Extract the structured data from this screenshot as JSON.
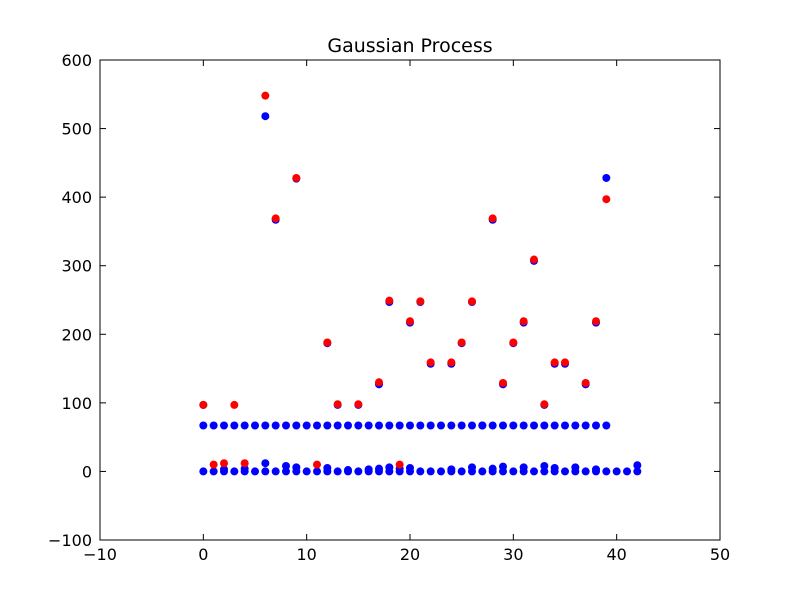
{
  "chart_data": {
    "type": "scatter",
    "title": "Gaussian Process",
    "xlabel": "",
    "ylabel": "",
    "xlim": [
      -10,
      50
    ],
    "ylim": [
      -100,
      600
    ],
    "x_ticks": [
      "−10",
      "0",
      "10",
      "20",
      "30",
      "40",
      "50"
    ],
    "y_ticks": [
      "−100",
      "0",
      "100",
      "200",
      "300",
      "400",
      "500",
      "600"
    ],
    "grid": false,
    "series": [
      {
        "color": "#0000ff",
        "points": [
          [
            0,
            67
          ],
          [
            1,
            67
          ],
          [
            2,
            67
          ],
          [
            3,
            67
          ],
          [
            4,
            67
          ],
          [
            5,
            67
          ],
          [
            6,
            67
          ],
          [
            7,
            67
          ],
          [
            8,
            67
          ],
          [
            9,
            67
          ],
          [
            10,
            67
          ],
          [
            11,
            67
          ],
          [
            12,
            67
          ],
          [
            13,
            67
          ],
          [
            14,
            67
          ],
          [
            15,
            67
          ],
          [
            16,
            67
          ],
          [
            17,
            67
          ],
          [
            18,
            67
          ],
          [
            19,
            67
          ],
          [
            20,
            67
          ],
          [
            21,
            67
          ],
          [
            22,
            67
          ],
          [
            23,
            67
          ],
          [
            24,
            67
          ],
          [
            25,
            67
          ],
          [
            26,
            67
          ],
          [
            27,
            67
          ],
          [
            28,
            67
          ],
          [
            29,
            67
          ],
          [
            30,
            67
          ],
          [
            31,
            67
          ],
          [
            32,
            67
          ],
          [
            33,
            67
          ],
          [
            34,
            67
          ],
          [
            35,
            67
          ],
          [
            36,
            67
          ],
          [
            37,
            67
          ],
          [
            38,
            67
          ],
          [
            39,
            67
          ],
          [
            0,
            0
          ],
          [
            1,
            0
          ],
          [
            2,
            0
          ],
          [
            3,
            0
          ],
          [
            4,
            0
          ],
          [
            5,
            0
          ],
          [
            6,
            0
          ],
          [
            7,
            0
          ],
          [
            8,
            0
          ],
          [
            9,
            0
          ],
          [
            10,
            0
          ],
          [
            11,
            0
          ],
          [
            12,
            0
          ],
          [
            13,
            0
          ],
          [
            14,
            0
          ],
          [
            15,
            0
          ],
          [
            16,
            0
          ],
          [
            17,
            0
          ],
          [
            18,
            0
          ],
          [
            19,
            0
          ],
          [
            20,
            0
          ],
          [
            21,
            0
          ],
          [
            22,
            0
          ],
          [
            23,
            0
          ],
          [
            24,
            0
          ],
          [
            25,
            0
          ],
          [
            26,
            0
          ],
          [
            27,
            0
          ],
          [
            28,
            0
          ],
          [
            29,
            0
          ],
          [
            30,
            0
          ],
          [
            31,
            0
          ],
          [
            32,
            0
          ],
          [
            33,
            0
          ],
          [
            34,
            0
          ],
          [
            35,
            0
          ],
          [
            36,
            0
          ],
          [
            37,
            0
          ],
          [
            38,
            0
          ],
          [
            39,
            0
          ],
          [
            40,
            0
          ],
          [
            41,
            0
          ],
          [
            42,
            0
          ],
          [
            2,
            3
          ],
          [
            4,
            4
          ],
          [
            6,
            12
          ],
          [
            8,
            8
          ],
          [
            9,
            6
          ],
          [
            12,
            5
          ],
          [
            14,
            2
          ],
          [
            16,
            3
          ],
          [
            17,
            4
          ],
          [
            18,
            6
          ],
          [
            19,
            4
          ],
          [
            20,
            5
          ],
          [
            24,
            3
          ],
          [
            26,
            6
          ],
          [
            28,
            4
          ],
          [
            29,
            7
          ],
          [
            31,
            6
          ],
          [
            33,
            8
          ],
          [
            34,
            5
          ],
          [
            36,
            6
          ],
          [
            38,
            3
          ],
          [
            42,
            9
          ],
          [
            0,
            97
          ],
          [
            6,
            518
          ],
          [
            7,
            367
          ],
          [
            9,
            427
          ],
          [
            12,
            187
          ],
          [
            13,
            97
          ],
          [
            15,
            97
          ],
          [
            17,
            127
          ],
          [
            18,
            247
          ],
          [
            20,
            217
          ],
          [
            21,
            247
          ],
          [
            22,
            157
          ],
          [
            24,
            157
          ],
          [
            25,
            187
          ],
          [
            26,
            247
          ],
          [
            27,
            67
          ],
          [
            28,
            367
          ],
          [
            29,
            127
          ],
          [
            30,
            187
          ],
          [
            31,
            217
          ],
          [
            32,
            307
          ],
          [
            33,
            97
          ],
          [
            34,
            157
          ],
          [
            35,
            157
          ],
          [
            37,
            127
          ],
          [
            38,
            217
          ],
          [
            39,
            428
          ]
        ]
      },
      {
        "color": "#ff0000",
        "points": [
          [
            0,
            97
          ],
          [
            1,
            10
          ],
          [
            2,
            12
          ],
          [
            3,
            97
          ],
          [
            4,
            12
          ],
          [
            6,
            548
          ],
          [
            7,
            369
          ],
          [
            9,
            428
          ],
          [
            11,
            10
          ],
          [
            12,
            188
          ],
          [
            13,
            98
          ],
          [
            15,
            98
          ],
          [
            17,
            130
          ],
          [
            18,
            249
          ],
          [
            19,
            10
          ],
          [
            20,
            219
          ],
          [
            21,
            248
          ],
          [
            22,
            159
          ],
          [
            24,
            159
          ],
          [
            25,
            188
          ],
          [
            26,
            248
          ],
          [
            28,
            369
          ],
          [
            29,
            129
          ],
          [
            30,
            188
          ],
          [
            31,
            219
          ],
          [
            32,
            309
          ],
          [
            33,
            98
          ],
          [
            34,
            159
          ],
          [
            35,
            159
          ],
          [
            37,
            129
          ],
          [
            38,
            219
          ],
          [
            39,
            397
          ]
        ]
      }
    ]
  }
}
